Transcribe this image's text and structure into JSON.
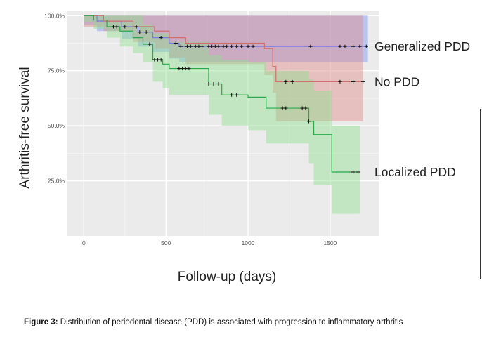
{
  "caption": {
    "label": "Figure 3:",
    "text": " Distribution of periodontal disease (PDD) is associated with progression to inflammatory arthritis"
  },
  "chart_data": {
    "type": "line",
    "title": "",
    "xlabel": "Follow-up (days)",
    "ylabel": "Arthritis-free survival",
    "xlim": [
      -100,
      1800
    ],
    "ylim": [
      0.0,
      1.02
    ],
    "xticks": [
      0,
      500,
      1000,
      1500
    ],
    "xtick_labels": [
      "0",
      "500",
      "1000",
      "1500"
    ],
    "yticks": [
      0.25,
      0.5,
      0.75,
      1.0
    ],
    "ytick_labels": [
      "25.0%",
      "50.0%",
      "75.0%",
      "100.0%"
    ],
    "grid": true,
    "legend": "labels-at-line-ends-right",
    "panel_background": "#ebebeb",
    "series": [
      {
        "name": "Generalized PDD",
        "color": "#7b7be0",
        "fill": "#7a9af5",
        "steps": [
          [
            0,
            1.0
          ],
          [
            80,
            0.975
          ],
          [
            230,
            0.95
          ],
          [
            330,
            0.925
          ],
          [
            420,
            0.9
          ],
          [
            520,
            0.875
          ],
          [
            580,
            0.86
          ],
          [
            1730,
            0.86
          ]
        ],
        "lower": [
          [
            0,
            0.96
          ],
          [
            80,
            0.93
          ],
          [
            230,
            0.895
          ],
          [
            330,
            0.86
          ],
          [
            420,
            0.835
          ],
          [
            520,
            0.805
          ],
          [
            580,
            0.79
          ],
          [
            1730,
            0.79
          ]
        ],
        "upper": [
          [
            0,
            1.0
          ],
          [
            1730,
            1.0
          ]
        ],
        "censor_x": [
          250,
          320,
          340,
          380,
          470,
          560,
          590,
          630,
          650,
          680,
          700,
          720,
          760,
          780,
          800,
          820,
          850,
          870,
          900,
          930,
          960,
          1000,
          1030,
          1380,
          1560,
          1590,
          1640,
          1680,
          1720
        ]
      },
      {
        "name": "No PDD",
        "color": "#d07070",
        "fill": "#e08a8a",
        "steps": [
          [
            0,
            1.0
          ],
          [
            120,
            0.975
          ],
          [
            300,
            0.95
          ],
          [
            430,
            0.93
          ],
          [
            520,
            0.9
          ],
          [
            620,
            0.875
          ],
          [
            1100,
            0.85
          ],
          [
            1150,
            0.77
          ],
          [
            1170,
            0.7
          ],
          [
            1700,
            0.7
          ]
        ],
        "lower": [
          [
            0,
            0.95
          ],
          [
            120,
            0.93
          ],
          [
            300,
            0.88
          ],
          [
            430,
            0.85
          ],
          [
            520,
            0.81
          ],
          [
            620,
            0.78
          ],
          [
            1100,
            0.73
          ],
          [
            1150,
            0.65
          ],
          [
            1170,
            0.52
          ],
          [
            1700,
            0.52
          ]
        ],
        "upper": [
          [
            0,
            1.0
          ],
          [
            1700,
            1.0
          ]
        ],
        "censor_x": [
          1230,
          1270,
          1560,
          1640,
          1700
        ]
      },
      {
        "name": "Localized PDD",
        "color": "#2ea84a",
        "fill": "#8fe08f",
        "steps": [
          [
            0,
            1.0
          ],
          [
            60,
            0.98
          ],
          [
            140,
            0.95
          ],
          [
            220,
            0.93
          ],
          [
            300,
            0.9
          ],
          [
            360,
            0.87
          ],
          [
            420,
            0.8
          ],
          [
            480,
            0.78
          ],
          [
            520,
            0.76
          ],
          [
            760,
            0.69
          ],
          [
            840,
            0.64
          ],
          [
            1000,
            0.63
          ],
          [
            1110,
            0.58
          ],
          [
            1370,
            0.52
          ],
          [
            1400,
            0.46
          ],
          [
            1510,
            0.29
          ],
          [
            1680,
            0.29
          ]
        ],
        "lower": [
          [
            0,
            0.97
          ],
          [
            60,
            0.94
          ],
          [
            140,
            0.9
          ],
          [
            220,
            0.86
          ],
          [
            300,
            0.83
          ],
          [
            360,
            0.79
          ],
          [
            420,
            0.7
          ],
          [
            480,
            0.67
          ],
          [
            520,
            0.64
          ],
          [
            760,
            0.55
          ],
          [
            840,
            0.5
          ],
          [
            1000,
            0.48
          ],
          [
            1110,
            0.42
          ],
          [
            1370,
            0.33
          ],
          [
            1400,
            0.23
          ],
          [
            1510,
            0.1
          ],
          [
            1680,
            0.1
          ]
        ],
        "upper": [
          [
            0,
            1.0
          ],
          [
            360,
            0.96
          ],
          [
            420,
            0.92
          ],
          [
            520,
            0.88
          ],
          [
            760,
            0.82
          ],
          [
            840,
            0.8
          ],
          [
            1000,
            0.79
          ],
          [
            1110,
            0.75
          ],
          [
            1370,
            0.71
          ],
          [
            1400,
            0.66
          ],
          [
            1510,
            0.5
          ],
          [
            1680,
            0.5
          ]
        ],
        "censor_x": [
          180,
          200,
          400,
          430,
          450,
          470,
          580,
          600,
          620,
          640,
          760,
          790,
          820,
          900,
          930,
          1210,
          1230,
          1330,
          1350,
          1370,
          1640,
          1670
        ]
      }
    ]
  }
}
